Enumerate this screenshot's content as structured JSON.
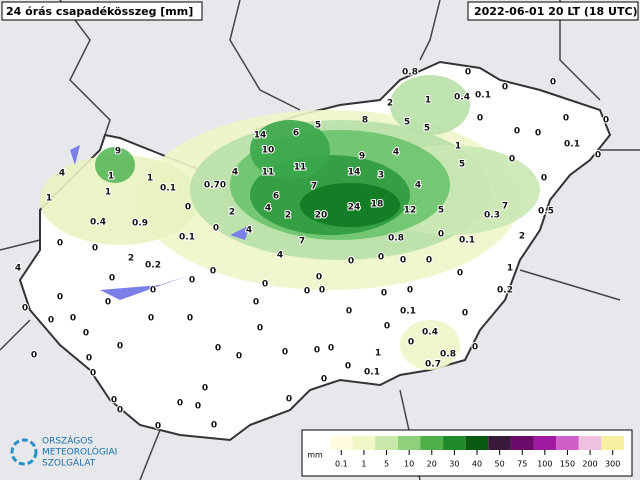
{
  "header": {
    "title": "24 órás csapadékösszeg [mm]",
    "time": "2022-06-01 20 LT (18 UTC)"
  },
  "logo": {
    "line1": "ORSZÁGOS",
    "line2": "METEOROLÓGIAI",
    "line3": "SZOLGÁLAT"
  },
  "legend": {
    "unit": "mm",
    "ticks": [
      0.1,
      1,
      5,
      10,
      20,
      30,
      40,
      50,
      75,
      100,
      150,
      200,
      300
    ]
  },
  "stations": [
    "0.8",
    "0",
    "0",
    "1",
    "0.4",
    "0.1",
    "0",
    "2",
    "14",
    "6",
    "5",
    "8",
    "5",
    "5",
    "0",
    "0",
    "0",
    "0",
    "0",
    "0.1",
    "0",
    "9",
    "10",
    "9",
    "4",
    "1",
    "0",
    "4",
    "1",
    "1",
    "4",
    "11",
    "11",
    "14",
    "3",
    "5",
    "0.1",
    "0.70",
    "1",
    "7",
    "4",
    "0",
    "1",
    "0",
    "6",
    "2",
    "4",
    "2",
    "20",
    "24",
    "18",
    "12",
    "5",
    "7",
    "0.3",
    "0.5",
    "0.4",
    "0.9",
    "0",
    "0",
    "0",
    "0.1",
    "4",
    "7",
    "0.8",
    "0",
    "0.1",
    "2",
    "2",
    "0.2",
    "0",
    "0",
    "0",
    "0",
    "1",
    "4",
    "0",
    "0",
    "0",
    "4",
    "0",
    "0",
    "0",
    "0",
    "0",
    "0",
    "0",
    "0",
    "0",
    "0.2",
    "0",
    "0",
    "0",
    "0",
    "0.1",
    "0",
    "0",
    "0",
    "0",
    "0",
    "0",
    "0.4",
    "0",
    "0",
    "0",
    "0",
    "0",
    "0",
    "0",
    "0.8",
    "0",
    "0",
    "0",
    "0",
    "1",
    "0",
    "0",
    "0.7",
    "0",
    "0.1",
    "0",
    "0",
    "0",
    "0",
    "0",
    "0",
    "0",
    "0",
    "0"
  ]
}
